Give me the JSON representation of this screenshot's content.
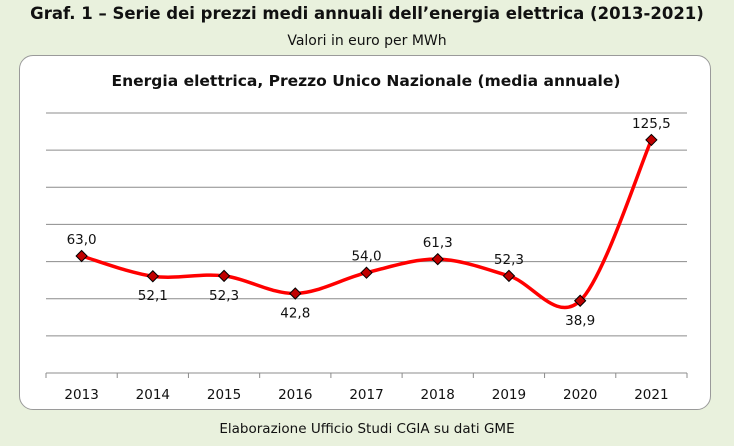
{
  "figure": {
    "title": "Graf. 1 – Serie dei prezzi medi annuali dell’energia elettrica (2013-2021)",
    "subtitle": "Valori in euro per MWh",
    "source": "Elaborazione Ufficio Studi CGIA su dati GME"
  },
  "chart_data": {
    "type": "line",
    "title": "Energia elettrica, Prezzo Unico Nazionale (media annuale)",
    "categories": [
      "2013",
      "2014",
      "2015",
      "2016",
      "2017",
      "2018",
      "2019",
      "2020",
      "2021"
    ],
    "values": [
      63.0,
      52.1,
      52.3,
      42.8,
      54.0,
      61.3,
      52.3,
      38.9,
      125.5
    ],
    "data_labels": [
      "63,0",
      "52,1",
      "52,3",
      "42,8",
      "54,0",
      "61,3",
      "52,3",
      "38,9",
      "125,5"
    ],
    "ylim": [
      0,
      140
    ],
    "ygrid_step": 20,
    "grid": true,
    "y_tick_labels_visible": false,
    "line_color": "#ff0000",
    "marker_color": "#c00000",
    "marker": "diamond",
    "smooth": true
  }
}
